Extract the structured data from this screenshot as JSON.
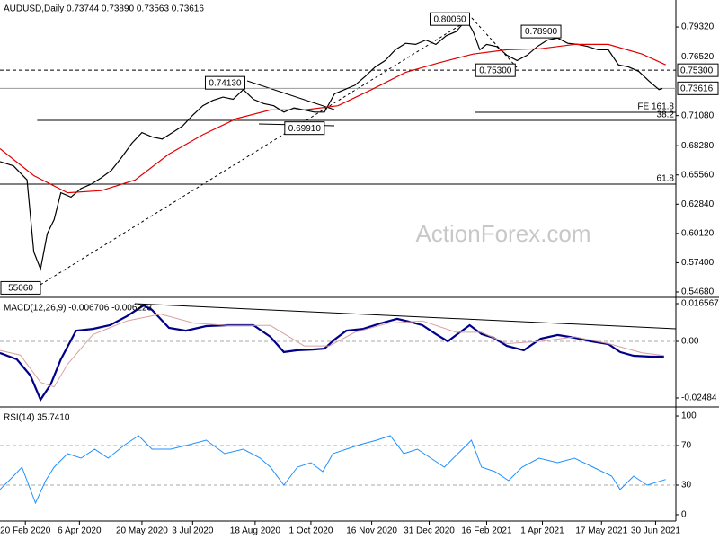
{
  "chart_data": [
    {
      "type": "line",
      "title": "AUDUSD,Daily  0.73744 0.73890 0.73563 0.73616",
      "watermark": "ActionForex.com",
      "xlim": [
        0,
        400
      ],
      "ylim": [
        0.5426,
        0.8183
      ],
      "yticks": [
        {
          "value": 0.7932,
          "label": "0.79320"
        },
        {
          "value": 0.7652,
          "label": "0.76520"
        },
        {
          "value": 0.7108,
          "label": "0.71080"
        },
        {
          "value": 0.6828,
          "label": "0.68280"
        },
        {
          "value": 0.6556,
          "label": "0.65560"
        },
        {
          "value": 0.6284,
          "label": "0.62840"
        },
        {
          "value": 0.6012,
          "label": "0.60120"
        },
        {
          "value": 0.574,
          "label": "0.57400"
        },
        {
          "value": 0.5468,
          "label": "0.54680"
        }
      ],
      "series": [
        {
          "color": "#000000",
          "x": [
            0,
            8,
            16,
            20,
            24,
            28,
            32,
            36,
            42,
            48,
            54,
            60,
            66,
            72,
            78,
            84,
            90,
            96,
            102,
            108,
            114,
            120,
            126,
            132,
            138,
            144,
            150,
            156,
            162,
            168,
            174,
            180,
            186,
            192,
            198,
            204,
            210,
            216,
            222,
            228,
            234,
            240,
            246,
            252,
            258,
            264,
            270,
            276,
            280,
            284,
            288,
            294,
            300,
            306,
            312,
            318,
            324,
            330,
            336,
            342,
            348,
            354,
            360,
            366,
            372,
            378,
            384,
            390,
            392
          ],
          "values": [
            0.668,
            0.664,
            0.651,
            0.584,
            0.568,
            0.601,
            0.614,
            0.639,
            0.635,
            0.643,
            0.647,
            0.653,
            0.66,
            0.672,
            0.685,
            0.695,
            0.691,
            0.689,
            0.695,
            0.701,
            0.711,
            0.72,
            0.725,
            0.728,
            0.726,
            0.735,
            0.726,
            0.722,
            0.72,
            0.714,
            0.718,
            0.716,
            0.714,
            0.714,
            0.731,
            0.735,
            0.739,
            0.747,
            0.756,
            0.762,
            0.772,
            0.778,
            0.777,
            0.781,
            0.777,
            0.785,
            0.789,
            0.8,
            0.789,
            0.772,
            0.777,
            0.775,
            0.767,
            0.762,
            0.767,
            0.775,
            0.781,
            0.783,
            0.778,
            0.777,
            0.775,
            0.772,
            0.772,
            0.758,
            0.756,
            0.752,
            0.743,
            0.735,
            0.736
          ]
        },
        {
          "color": "#e00000",
          "x": [
            0,
            20,
            40,
            60,
            80,
            100,
            120,
            140,
            160,
            180,
            200,
            220,
            240,
            260,
            280,
            300,
            320,
            340,
            360,
            380,
            394
          ],
          "values": [
            0.68,
            0.655,
            0.639,
            0.641,
            0.651,
            0.675,
            0.693,
            0.708,
            0.716,
            0.716,
            0.72,
            0.735,
            0.751,
            0.76,
            0.768,
            0.772,
            0.773,
            0.777,
            0.777,
            0.768,
            0.758
          ]
        }
      ],
      "levels": [
        {
          "value": 0.753,
          "label": "0.75300",
          "style": "dashed"
        },
        {
          "value": 0.73616,
          "label": "0.73616",
          "style": "solid"
        }
      ],
      "fib": [
        {
          "value": 0.7139,
          "label": "FE 161.8",
          "from": 281
        },
        {
          "value": 0.7064,
          "label": "38.2",
          "from": 22
        },
        {
          "value": 0.647,
          "label": "61.8",
          "from": 0
        }
      ],
      "annotations": [
        {
          "label": "0.80060",
          "x": 279,
          "value": 0.8006
        },
        {
          "label": "0.78900",
          "x": 333,
          "value": 0.789
        },
        {
          "label": "0.75300",
          "x": 306,
          "value": 0.753
        },
        {
          "label": "0.74130",
          "x": 146,
          "value": 0.7413
        },
        {
          "label": "0.69910",
          "x": 193,
          "value": 0.6991
        },
        {
          "label": "55060",
          "x": 21,
          "value": 0.5506
        }
      ]
    },
    {
      "type": "line",
      "title": "MACD(12,26,9) -0.006706 -0.006223",
      "xlim": [
        0,
        400
      ],
      "ylim": [
        -0.0284,
        0.01854
      ],
      "yticks": [
        {
          "value": 0.016567,
          "label": "0.016567"
        },
        {
          "value": 0,
          "label": "0.00"
        },
        {
          "value": -0.02484,
          "label": "-0.02484"
        }
      ],
      "levels": [
        0
      ],
      "series": [
        {
          "color": "#00008b",
          "width": 2.2,
          "x": [
            0,
            10,
            18,
            24,
            30,
            36,
            45,
            55,
            65,
            75,
            85,
            90,
            100,
            110,
            122,
            135,
            150,
            160,
            168,
            176,
            185,
            192,
            198,
            205,
            215,
            225,
            235,
            242,
            250,
            258,
            265,
            272,
            278,
            285,
            292,
            300,
            310,
            320,
            330,
            340,
            350,
            360,
            367,
            375,
            385,
            393
          ],
          "values": [
            -0.0051,
            -0.0079,
            -0.015,
            -0.0256,
            -0.0189,
            -0.0079,
            0.0047,
            0.0055,
            0.0071,
            0.011,
            0.0158,
            0.0138,
            0.0059,
            0.0047,
            0.0067,
            0.0071,
            0.0071,
            0.002,
            -0.0047,
            -0.0039,
            -0.0036,
            -0.0032,
            0.0008,
            0.0047,
            0.0055,
            0.0079,
            0.0099,
            0.0087,
            0.0071,
            0.0032,
            0,
            0.0039,
            0.0071,
            0.0032,
            0.0016,
            -0.002,
            -0.0039,
            0.0012,
            0.0028,
            0.0016,
            0,
            -0.0012,
            -0.0047,
            -0.0063,
            -0.0067,
            -0.0067
          ]
        },
        {
          "color": "#d9a0a0",
          "width": 1,
          "x": [
            0,
            12,
            24,
            32,
            40,
            55,
            75,
            95,
            115,
            135,
            160,
            180,
            195,
            210,
            230,
            250,
            270,
            285,
            300,
            320,
            340,
            360,
            380,
            393
          ],
          "values": [
            -0.004,
            -0.006,
            -0.018,
            -0.02,
            -0.01,
            0.003,
            0.009,
            0.012,
            0.008,
            0.007,
            0.007,
            -0.002,
            -0.002,
            0.004,
            0.008,
            0.009,
            0.004,
            0.004,
            -0.001,
            0,
            0.002,
            -0.001,
            -0.005,
            -0.0062
          ]
        }
      ]
    },
    {
      "type": "line",
      "title": "RSI(14) 35.7410",
      "xlim": [
        0,
        400
      ],
      "ylim": [
        -6.4,
        107.3
      ],
      "yticks": [
        100,
        70,
        30,
        0
      ],
      "levels": [
        70,
        30
      ],
      "xticks": [
        {
          "value": 15,
          "label": "20 Feb 2020"
        },
        {
          "value": 47,
          "label": "6 Apr 2020"
        },
        {
          "value": 84,
          "label": "20 May 2020"
        },
        {
          "value": 114,
          "label": "3 Jul 2020"
        },
        {
          "value": 151,
          "label": "18 Aug 2020"
        },
        {
          "value": 184,
          "label": "1 Oct 2020"
        },
        {
          "value": 220,
          "label": "16 Nov 2020"
        },
        {
          "value": 254,
          "label": "31 Dec 2020"
        },
        {
          "value": 288,
          "label": "16 Feb 2021"
        },
        {
          "value": 321,
          "label": "1 Apr 2021"
        },
        {
          "value": 356,
          "label": "17 May 2021"
        },
        {
          "value": 388,
          "label": "30 Jun 2021"
        }
      ],
      "series": [
        {
          "color": "#1e90ff",
          "width": 1,
          "x": [
            0,
            8,
            13,
            21,
            27,
            32,
            40,
            48,
            56,
            64,
            74,
            82,
            90,
            101,
            112,
            122,
            133,
            144,
            154,
            160,
            168,
            176,
            184,
            191,
            197,
            205,
            213,
            223,
            231,
            239,
            247,
            255,
            263,
            271,
            279,
            285,
            293,
            301,
            309,
            319,
            330,
            340,
            351,
            362,
            367,
            375,
            383,
            394
          ],
          "values": [
            25.5,
            39.1,
            48.2,
            11.8,
            34.5,
            48.2,
            61.8,
            57.3,
            66.4,
            57.3,
            70.9,
            80.0,
            66.4,
            66.4,
            70.9,
            75.5,
            61.8,
            66.4,
            57.3,
            48.2,
            30.0,
            48.2,
            52.7,
            43.6,
            61.8,
            66.4,
            70.9,
            75.5,
            80.0,
            61.8,
            66.4,
            57.3,
            48.2,
            61.8,
            75.5,
            48.2,
            43.6,
            34.5,
            48.2,
            57.3,
            52.7,
            57.3,
            48.2,
            39.1,
            25.5,
            39.1,
            30.0,
            35.7
          ]
        }
      ]
    }
  ]
}
